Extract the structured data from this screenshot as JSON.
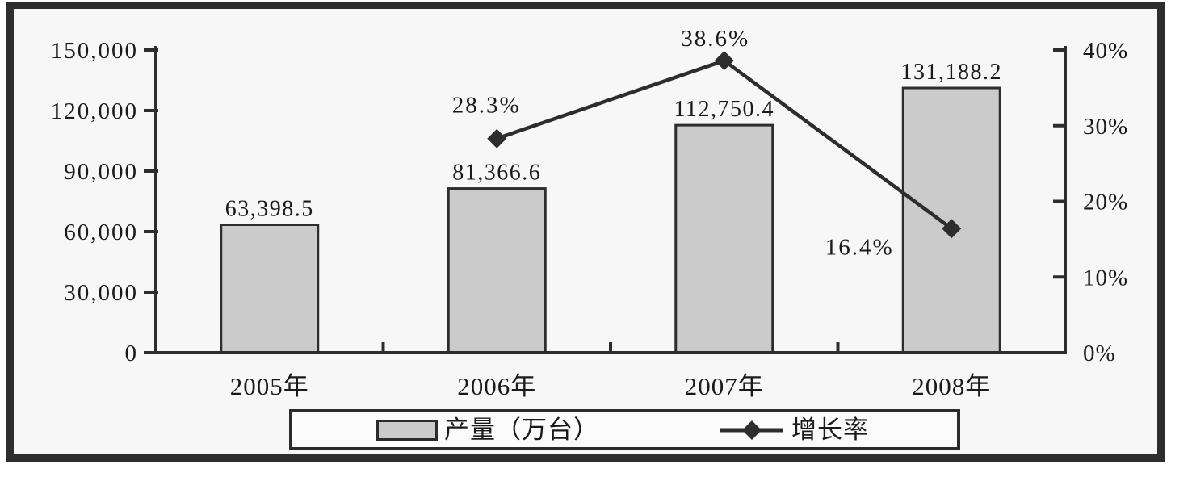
{
  "chart_data": {
    "type": "bar",
    "subtype": "bar-line-combo",
    "categories": [
      "2005年",
      "2006年",
      "2007年",
      "2008年"
    ],
    "series": [
      {
        "name": "产量（万台）",
        "type": "bar",
        "axis": "left",
        "values": [
          63398.5,
          81366.6,
          112750.4,
          131188.2
        ],
        "labels": [
          "63,398.5",
          "81,366.6",
          "112,750.4",
          "131,188.2"
        ]
      },
      {
        "name": "增长率",
        "type": "line",
        "axis": "right",
        "marker": "diamond",
        "values": [
          null,
          28.3,
          38.6,
          16.4
        ],
        "labels": [
          null,
          "28.3%",
          "38.6%",
          "16.4%"
        ]
      }
    ],
    "left_axis": {
      "min": 0,
      "max": 150000,
      "step": 30000,
      "tick_labels": [
        "0",
        "30,000",
        "60,000",
        "90,000",
        "120,000",
        "150,000"
      ]
    },
    "right_axis": {
      "min": 0,
      "max": 40,
      "step": 10,
      "tick_labels": [
        "0%",
        "10%",
        "20%",
        "30%",
        "40%"
      ]
    },
    "title": "",
    "xlabel": "",
    "ylabel": "",
    "grid": false,
    "legend_position": "bottom"
  },
  "legend": {
    "items": [
      {
        "label": "产量（万台）",
        "swatch": "bar"
      },
      {
        "label": "增长率",
        "swatch": "line-diamond"
      }
    ]
  },
  "colors": {
    "bar_fill": "#cbcbcb",
    "stroke": "#2d2d2d",
    "frame": "#2e2e2e",
    "background": "#f7f7f7",
    "text": "#1a1a1a"
  }
}
